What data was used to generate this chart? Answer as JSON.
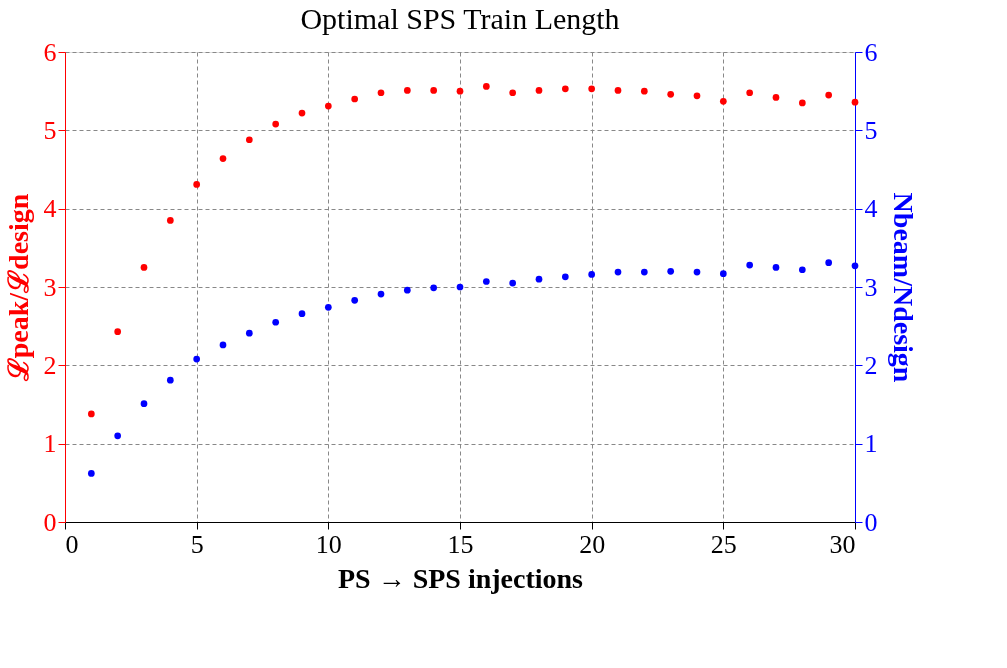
{
  "chart_data": {
    "type": "scatter",
    "title": "Optimal SPS Train Length",
    "xlabel": "PS → SPS injections",
    "ylabel": "ℒpeak/ℒdesign",
    "y2label": "Nbeam/Ndesign",
    "x": [
      1,
      2,
      3,
      4,
      5,
      6,
      7,
      8,
      9,
      10,
      11,
      12,
      13,
      14,
      15,
      16,
      17,
      18,
      19,
      20,
      21,
      22,
      23,
      24,
      25,
      26,
      27,
      28,
      29,
      30
    ],
    "series": [
      {
        "color": "#ff0000",
        "values": [
          1.38,
          2.43,
          3.25,
          3.85,
          4.31,
          4.64,
          4.88,
          5.08,
          5.22,
          5.31,
          5.4,
          5.48,
          5.51,
          5.51,
          5.5,
          5.56,
          5.48,
          5.51,
          5.53,
          5.53,
          5.51,
          5.5,
          5.46,
          5.44,
          5.37,
          5.48,
          5.42,
          5.35,
          5.45,
          5.36
        ]
      },
      {
        "color": "#0000ff",
        "axis": "y2",
        "values": [
          0.62,
          1.1,
          1.51,
          1.81,
          2.08,
          2.26,
          2.41,
          2.55,
          2.66,
          2.74,
          2.83,
          2.91,
          2.96,
          2.99,
          3.0,
          3.07,
          3.05,
          3.1,
          3.13,
          3.16,
          3.19,
          3.19,
          3.2,
          3.19,
          3.17,
          3.28,
          3.25,
          3.22,
          3.31,
          3.27
        ]
      }
    ],
    "xlim": [
      0,
      30
    ],
    "xticks": [
      0,
      5,
      10,
      15,
      20,
      25,
      30
    ],
    "ylim": [
      0,
      6
    ],
    "yticks": [
      0,
      1,
      2,
      3,
      4,
      5,
      6
    ],
    "y2lim": [
      0,
      6
    ],
    "y2ticks": [
      0,
      1,
      2,
      3,
      4,
      5,
      6
    ],
    "grid": true,
    "marker": "circle"
  }
}
